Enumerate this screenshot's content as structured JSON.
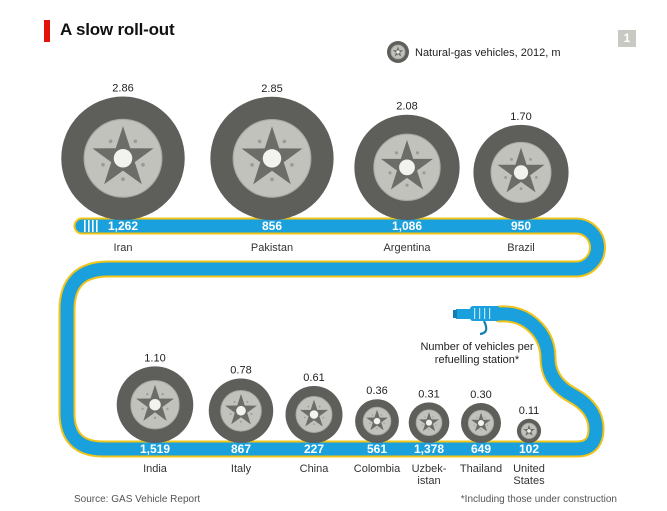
{
  "header": {
    "title": "A slow roll-out",
    "chart_number": "1"
  },
  "footer": {
    "source": "Source: GAS Vehicle Report",
    "note": "*Including those under construction"
  },
  "legend": {
    "label": "Natural-gas vehicles, 2012, m"
  },
  "annotation": {
    "line1": "Number of vehicles per",
    "line2": "refuelling station*"
  },
  "colors": {
    "accent_red": "#e3120b",
    "pipe_blue": "#1aa0dc",
    "pipe_yellow": "#f0c419",
    "tyre_dark": "#5e5e5b",
    "rim_light": "#c2c2bd",
    "hub_dark": "#6c6c69",
    "badge_grey": "#c9c9c4"
  },
  "chart_data": {
    "type": "bubble",
    "metric_size": "Natural-gas vehicles, 2012, m",
    "metric_label": "Number of vehicles per refuelling station*",
    "rows": [
      {
        "countries": [
          {
            "name": "Iran",
            "vehicles_m": "2.86",
            "per_station": "1,262",
            "vehicles": 2.86
          },
          {
            "name": "Pakistan",
            "vehicles_m": "2.85",
            "per_station": "856",
            "vehicles": 2.85
          },
          {
            "name": "Argentina",
            "vehicles_m": "2.08",
            "per_station": "1,086",
            "vehicles": 2.08
          },
          {
            "name": "Brazil",
            "vehicles_m": "1.70",
            "per_station": "950",
            "vehicles": 1.7
          }
        ]
      },
      {
        "countries": [
          {
            "name": "India",
            "vehicles_m": "1.10",
            "per_station": "1,519",
            "vehicles": 1.1
          },
          {
            "name": "Italy",
            "vehicles_m": "0.78",
            "per_station": "867",
            "vehicles": 0.78
          },
          {
            "name": "China",
            "vehicles_m": "0.61",
            "per_station": "227",
            "vehicles": 0.61
          },
          {
            "name": "Colombia",
            "vehicles_m": "0.36",
            "per_station": "561",
            "vehicles": 0.36
          },
          {
            "name": "Uzbek-\nistan",
            "vehicles_m": "0.31",
            "per_station": "1,378",
            "vehicles": 0.31
          },
          {
            "name": "Thailand",
            "vehicles_m": "0.30",
            "per_station": "649",
            "vehicles": 0.3
          },
          {
            "name": "United\nStates",
            "vehicles_m": "0.11",
            "per_station": "102",
            "vehicles": 0.11
          }
        ]
      }
    ]
  }
}
